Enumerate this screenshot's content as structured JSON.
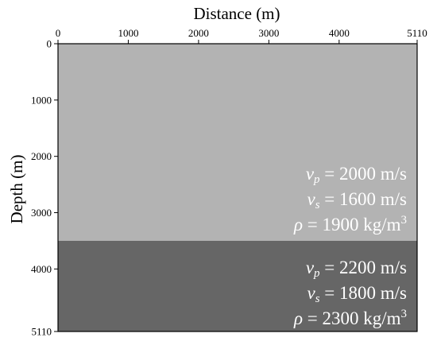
{
  "figure": {
    "x_axis_label": "Distance (m)",
    "y_axis_label": "Depth (m)",
    "x_ticks": [
      "0",
      "1000",
      "2000",
      "3000",
      "4000",
      "5110"
    ],
    "y_ticks": [
      "0",
      "1000",
      "2000",
      "3000",
      "4000",
      "5110"
    ],
    "x_range": [
      0,
      5110
    ],
    "y_range": [
      0,
      5110
    ],
    "interface_depth": 3500
  },
  "layers": [
    {
      "name": "upper-layer",
      "color": "#b3b3b3",
      "top": 0,
      "bottom": 3500,
      "vp_symbol": "v",
      "vp_sub": "p",
      "vp_text": " = 2000 m/s",
      "vs_symbol": "v",
      "vs_sub": "s",
      "vs_text": " = 1600 m/s",
      "rho_symbol": "ρ",
      "rho_text": " = 1900 kg/m",
      "rho_sup": "3"
    },
    {
      "name": "lower-layer",
      "color": "#666666",
      "top": 3500,
      "bottom": 5110,
      "vp_symbol": "v",
      "vp_sub": "p",
      "vp_text": " = 2200 m/s",
      "vs_symbol": "v",
      "vs_sub": "s",
      "vs_text": " = 1800 m/s",
      "rho_symbol": "ρ",
      "rho_text": " = 2300 kg/m",
      "rho_sup": "3"
    }
  ]
}
